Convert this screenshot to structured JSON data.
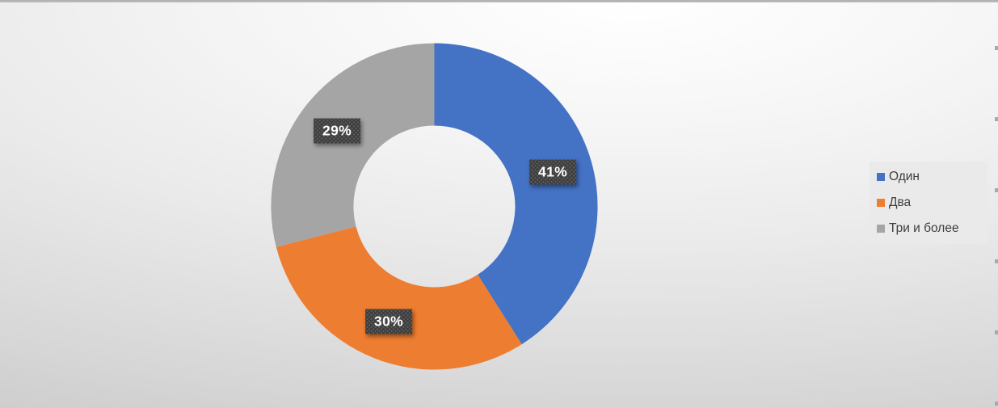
{
  "chart_data": {
    "type": "pie",
    "subtype": "doughnut",
    "title": "",
    "categories": [
      "Один",
      "Два",
      "Три и более"
    ],
    "values": [
      41,
      30,
      29
    ],
    "data_labels": [
      "41%",
      "30%",
      "29%"
    ],
    "colors": [
      "#4472C4",
      "#ED7D31",
      "#A5A5A5"
    ],
    "start_angle_deg": 0,
    "direction": "clockwise",
    "hole_ratio": 0.5,
    "legend_position": "right",
    "data_label_style": {
      "background": "#3B3B3B",
      "text_color": "#FFFFFF",
      "pattern": "dotted-grid"
    }
  },
  "legend": {
    "background": "#EAEAEA",
    "text_color": "#3E3E3E",
    "entries": [
      {
        "label": "Один",
        "color": "#4472C4"
      },
      {
        "label": "Два",
        "color": "#ED7D31"
      },
      {
        "label": "Три и более",
        "color": "#A5A5A5"
      }
    ]
  }
}
